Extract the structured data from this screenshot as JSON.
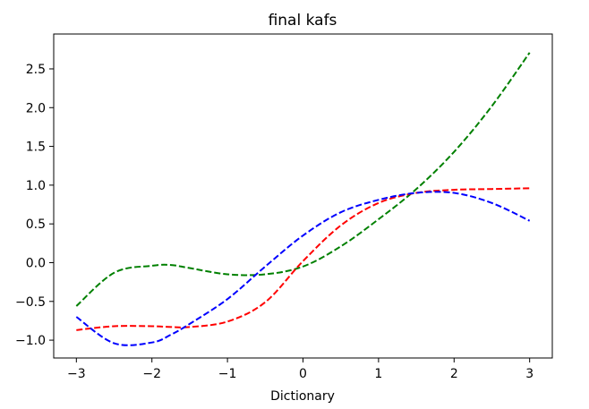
{
  "chart_data": {
    "type": "line",
    "title": "final kafs",
    "xlabel": "Dictionary",
    "ylabel": "",
    "xlim": [
      -3.3,
      3.3
    ],
    "ylim": [
      -1.23,
      2.95
    ],
    "grid": false,
    "legend": "none",
    "x_ticks": [
      -3,
      -2,
      -1,
      0,
      1,
      2,
      3
    ],
    "x_tick_labels": [
      "−3",
      "−2",
      "−1",
      "0",
      "1",
      "2",
      "3"
    ],
    "y_ticks": [
      -1.0,
      -0.5,
      0.0,
      0.5,
      1.0,
      1.5,
      2.0,
      2.5
    ],
    "y_tick_labels": [
      "−1.0",
      "−0.5",
      "0.0",
      "0.5",
      "1.0",
      "1.5",
      "2.0",
      "2.5"
    ],
    "x": [
      -3.0,
      -2.5,
      -2.0,
      -1.75,
      -1.5,
      -1.0,
      -0.5,
      0.0,
      0.5,
      1.0,
      1.5,
      2.0,
      2.5,
      3.0
    ],
    "series": [
      {
        "color": "#008000",
        "values": [
          -0.56,
          -0.13,
          -0.04,
          -0.03,
          -0.07,
          -0.15,
          -0.15,
          -0.05,
          0.21,
          0.56,
          0.95,
          1.43,
          2.02,
          2.71
        ]
      },
      {
        "color": "#ff0000",
        "values": [
          -0.87,
          -0.82,
          -0.82,
          -0.83,
          -0.83,
          -0.76,
          -0.51,
          0.02,
          0.48,
          0.77,
          0.9,
          0.94,
          0.95,
          0.96
        ]
      },
      {
        "color": "#0000ff",
        "values": [
          -0.7,
          -1.04,
          -1.03,
          -0.93,
          -0.79,
          -0.47,
          -0.05,
          0.35,
          0.65,
          0.81,
          0.9,
          0.9,
          0.77,
          0.54
        ]
      }
    ]
  }
}
